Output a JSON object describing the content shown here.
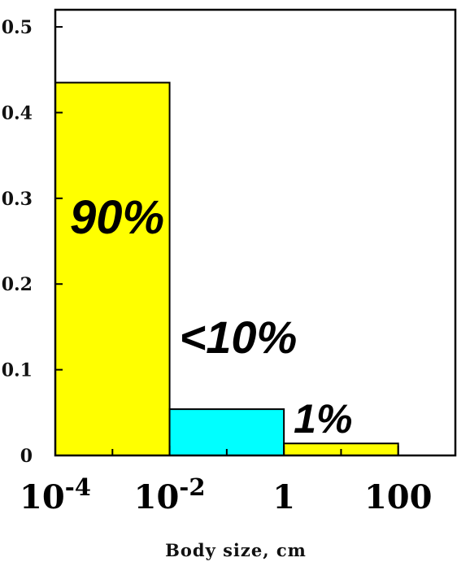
{
  "chart_data": {
    "type": "bar",
    "title": "",
    "xlabel": "Body size, cm",
    "ylabel": "",
    "x_scale": "log",
    "xlim": [
      0.0001,
      1000
    ],
    "ylim": [
      0,
      0.52
    ],
    "yticks": [
      0,
      0.1,
      0.2,
      0.3,
      0.4,
      0.5
    ],
    "ytick_labels": [
      "0",
      "0.1",
      "0.2",
      "0.3",
      "0.4",
      "0.5"
    ],
    "xticks": [
      {
        "value": 0.0001,
        "base": "10",
        "exp": "-4"
      },
      {
        "value": 0.01,
        "base": "10",
        "exp": "-2"
      },
      {
        "value": 1,
        "base": "1",
        "exp": ""
      },
      {
        "value": 100,
        "base": "100",
        "exp": ""
      }
    ],
    "grid": false,
    "bars": [
      {
        "x_start": 0.0001,
        "x_end": 0.01,
        "value": 0.435,
        "color": "#ffff00",
        "label": "90%"
      },
      {
        "x_start": 0.01,
        "x_end": 1,
        "value": 0.054,
        "color": "#00ffff",
        "label": "<10%"
      },
      {
        "x_start": 1,
        "x_end": 100,
        "value": 0.014,
        "color": "#ffff00",
        "label": "1%"
      }
    ]
  }
}
